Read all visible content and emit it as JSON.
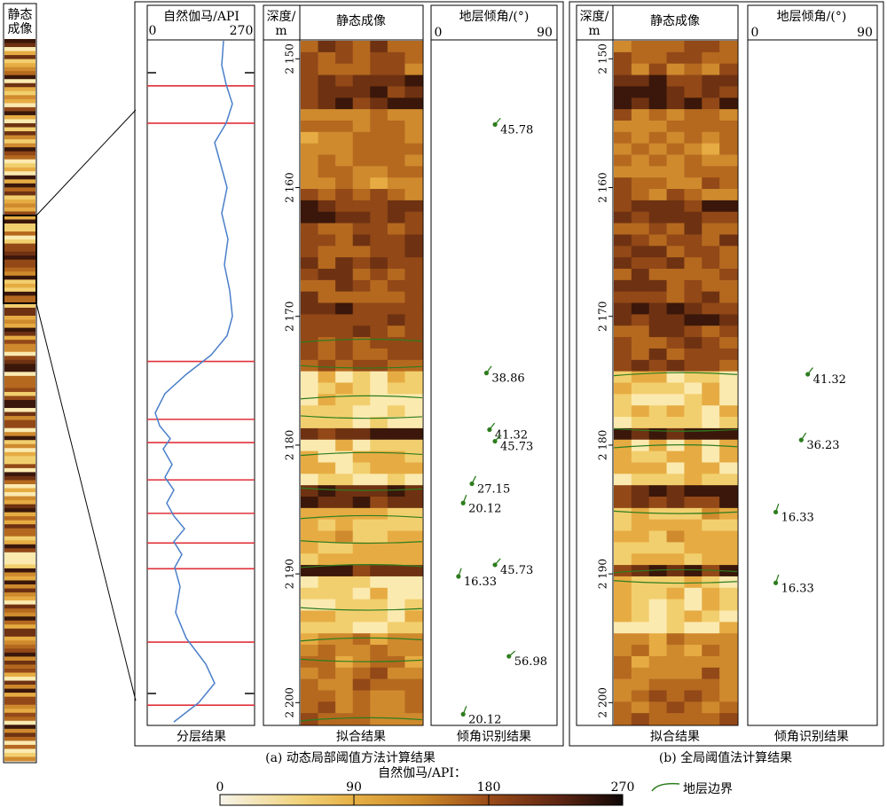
{
  "strip": {
    "title_line1": "静态",
    "title_line2": "成像"
  },
  "panel_a": {
    "gamma_header": "自然伽马/API",
    "gamma_scale_min": "0",
    "gamma_scale_max": "270",
    "depth_header_line1": "深度/",
    "depth_header_line2": "m",
    "image_header": "静态成像",
    "dip_header": "地层倾角/(°)",
    "dip_scale_min": "0",
    "dip_scale_max": "90",
    "footer_gamma": "分层结果",
    "footer_image": "拟合结果",
    "footer_dip": "倾角识别结果",
    "caption": "(a) 动态局部阈值方法计算结果",
    "layer_depths": [
      2171.8,
      2174.0,
      2176.2,
      2177.9,
      2180.6,
      2183.5,
      2185.5,
      2187.6,
      2189.3,
      2192.8,
      2195.0,
      2196.8,
      2201.2
    ],
    "red_lines": [
      2152.1,
      2155.0,
      2173.5,
      2178.0,
      2179.8,
      2182.7,
      2185.3,
      2187.6,
      2189.6,
      2195.3,
      2200.2
    ],
    "dips": [
      {
        "depth": 2155.1,
        "angle": 45.78,
        "label": "45.78"
      },
      {
        "depth": 2174.4,
        "angle": 38.86,
        "label": "38.86"
      },
      {
        "depth": 2178.8,
        "angle": 41.32,
        "label": "41.32"
      },
      {
        "depth": 2179.7,
        "angle": 45.73,
        "label": "45.73"
      },
      {
        "depth": 2183.0,
        "angle": 27.15,
        "label": "27.15"
      },
      {
        "depth": 2184.5,
        "angle": 20.12,
        "label": "20.12"
      },
      {
        "depth": 2189.3,
        "angle": 45.73,
        "label": "45.73"
      },
      {
        "depth": 2190.2,
        "angle": 16.33,
        "label": "16.33"
      },
      {
        "depth": 2196.4,
        "angle": 56.98,
        "label": "56.98"
      },
      {
        "depth": 2200.9,
        "angle": 20.12,
        "label": "20.12"
      }
    ]
  },
  "panel_b": {
    "depth_header_line1": "深度/",
    "depth_header_line2": "m",
    "image_header": "静态成像",
    "dip_header": "地层倾角/(°)",
    "dip_scale_min": "0",
    "dip_scale_max": "90",
    "footer_image": "拟合结果",
    "footer_dip": "倾角识别结果",
    "caption": "(b) 全局阈值法计算结果",
    "layer_depths": [
      2174.4,
      2178.9,
      2180.0,
      2185.3,
      2189.7,
      2190.7
    ],
    "dips": [
      {
        "depth": 2174.5,
        "angle": 41.32,
        "label": "41.32"
      },
      {
        "depth": 2179.6,
        "angle": 36.23,
        "label": "36.23"
      },
      {
        "depth": 2185.2,
        "angle": 16.33,
        "label": "16.33"
      },
      {
        "depth": 2190.7,
        "angle": 16.33,
        "label": "16.33"
      }
    ]
  },
  "depth_axis": {
    "min": 2148.6,
    "max": 2201.7,
    "ticks": [
      2150,
      2160,
      2170,
      2180,
      2190,
      2200
    ],
    "tick_labels": [
      "2 150",
      "2 160",
      "2 170",
      "2 180",
      "2 190",
      "2 200"
    ]
  },
  "colorbar": {
    "title": "自然伽马/API：",
    "tick_labels": [
      "0",
      "90",
      "180",
      "270"
    ]
  },
  "legend": {
    "label": "地层边界"
  },
  "colors": {
    "layer_line": "#2e7d1f",
    "red_line": "#e0303a",
    "gamma_curve": "#4a7fc9",
    "dip_marker": "#2e7d1f"
  }
}
